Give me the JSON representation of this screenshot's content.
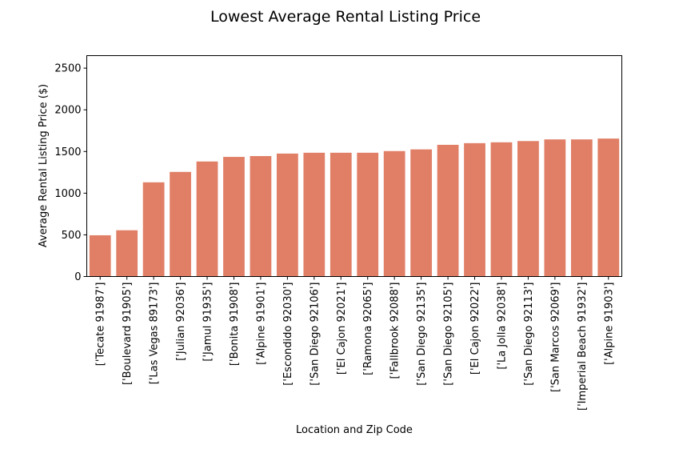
{
  "chart_data": {
    "type": "bar",
    "title": "Lowest Average Rental Listing Price",
    "xlabel": "Location and Zip Code",
    "ylabel": "Average Rental Listing Price ($)",
    "ylim": [
      0,
      2650
    ],
    "yticks": [
      0,
      500,
      1000,
      1500,
      2000,
      2500
    ],
    "grid": false,
    "bar_color": "#e07f66",
    "categories": [
      "['Tecate 91987']",
      "['Boulevard 91905']",
      "['Las Vegas 89173']",
      "['Julian 92036']",
      "['Jamul 91935']",
      "['Bonita 91908']",
      "['Alpine 91901']",
      "['Escondido 92030']",
      "['San Diego 92106']",
      "['El Cajon 92021']",
      "['Ramona 92065']",
      "['Fallbrook 92088']",
      "['San Diego 92135']",
      "['San Diego 92105']",
      "['El Cajon 92022']",
      "['La Jolla 92038']",
      "['San Diego 92113']",
      "['San Marcos 92069']",
      "['Imperial Beach 91932']",
      "['Alpine 91903']"
    ],
    "values": [
      495,
      555,
      1130,
      1255,
      1380,
      1435,
      1445,
      1475,
      1485,
      1485,
      1485,
      1505,
      1525,
      1580,
      1600,
      1610,
      1625,
      1645,
      1645,
      1655
    ]
  }
}
